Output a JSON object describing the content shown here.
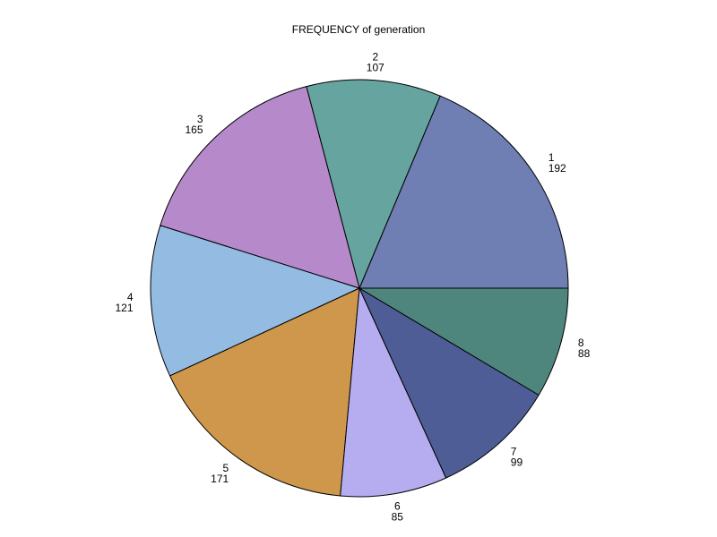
{
  "chart_data": {
    "type": "pie",
    "title": "FREQUENCY of generation",
    "start_angle_deg": 0,
    "direction": "counterclockwise",
    "slices": [
      {
        "label": "1",
        "value": 192,
        "color": "#6f7eb3"
      },
      {
        "label": "2",
        "value": 107,
        "color": "#66a59f"
      },
      {
        "label": "3",
        "value": 165,
        "color": "#b689cb"
      },
      {
        "label": "4",
        "value": 121,
        "color": "#94bbe1"
      },
      {
        "label": "5",
        "value": 171,
        "color": "#cf974b"
      },
      {
        "label": "6",
        "value": 85,
        "color": "#b6adf1"
      },
      {
        "label": "7",
        "value": 99,
        "color": "#4e5d96"
      },
      {
        "label": "8",
        "value": 88,
        "color": "#4e867e"
      }
    ]
  }
}
